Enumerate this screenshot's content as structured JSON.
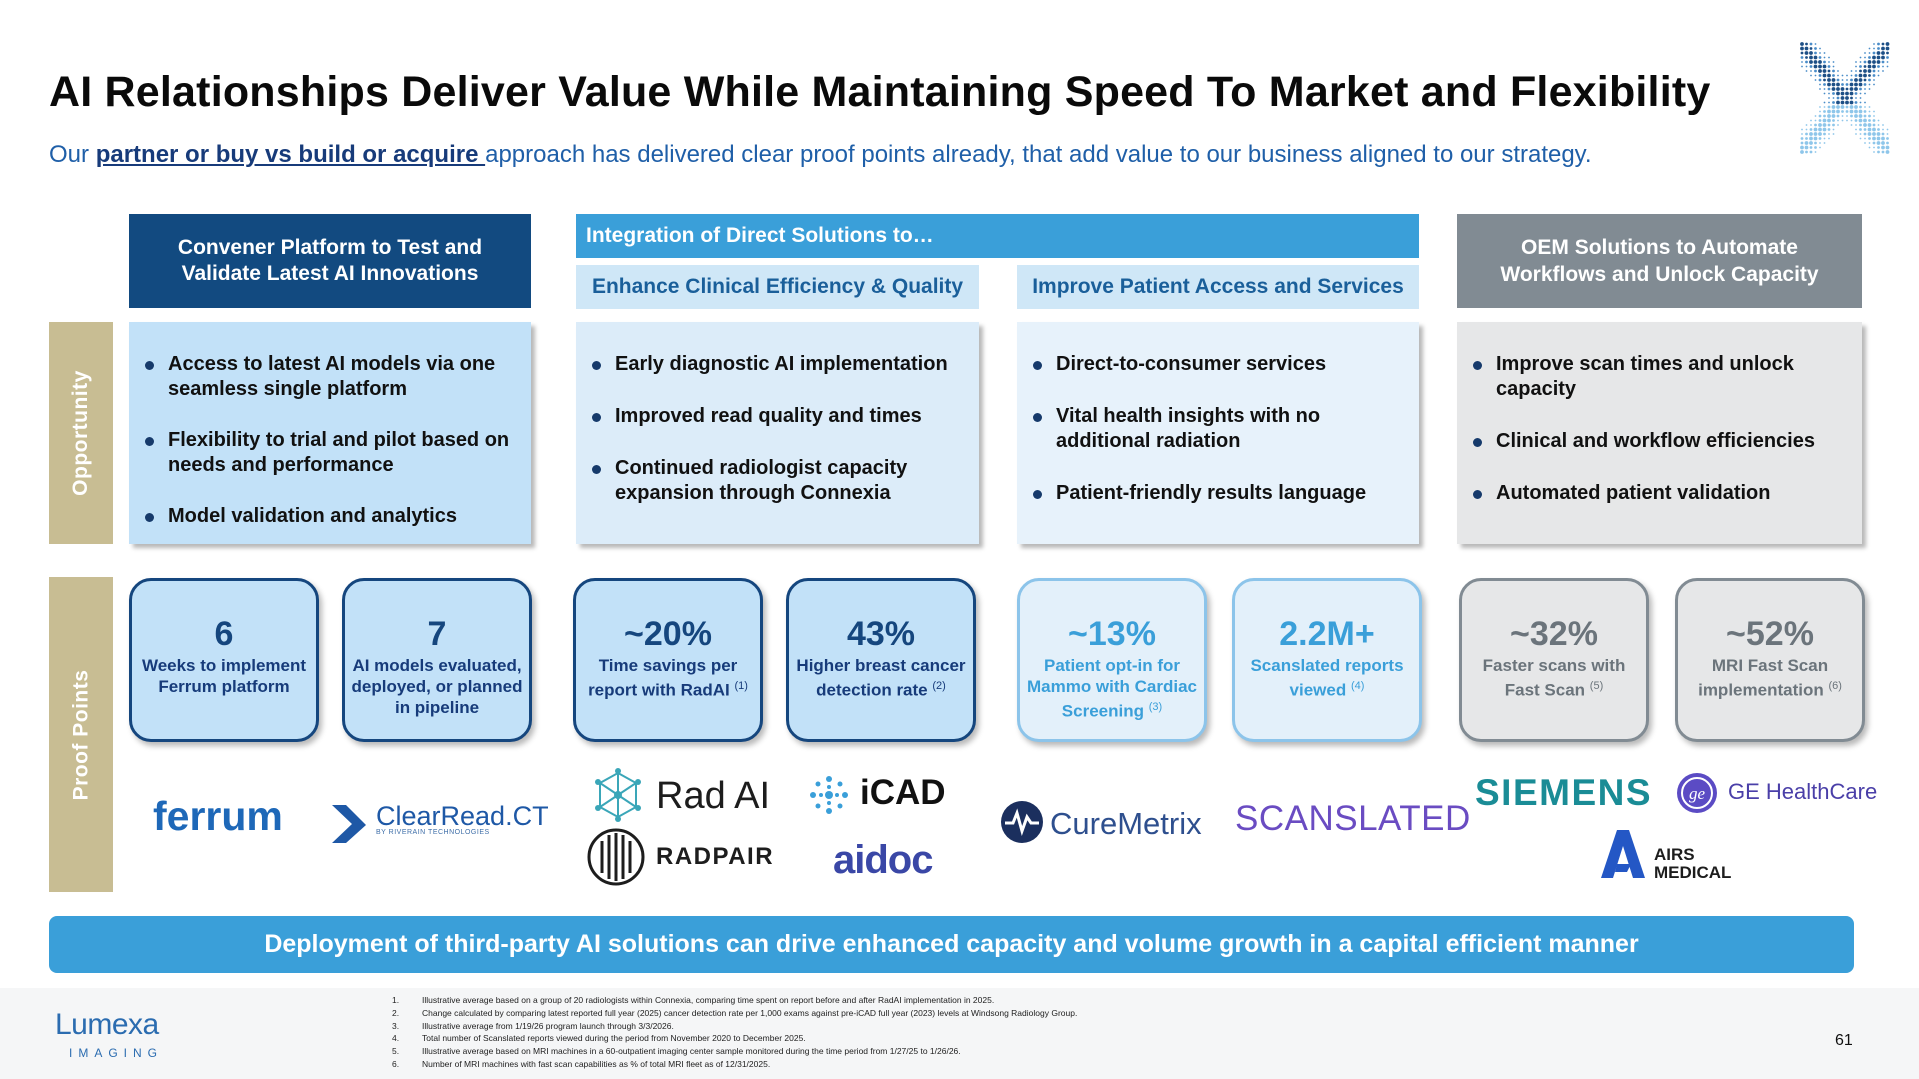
{
  "title": "AI Relationships Deliver Value While Maintaining Speed To Market and Flexibility",
  "subtitle": {
    "prefix": "Our ",
    "link": "partner or buy vs build or acquire ",
    "suffix": "approach has delivered clear proof points already, that add value to our business aligned to our strategy."
  },
  "headers": {
    "convener": "Convener Platform to Test and Validate Latest AI Innovations",
    "integration": "Integration of Direct Solutions to…",
    "enhance": "Enhance Clinical Efficiency & Quality",
    "improve": "Improve Patient Access and Services",
    "oem": "OEM Solutions to Automate Workflows and Unlock Capacity"
  },
  "side_labels": {
    "opportunity": "Opportunity",
    "proof": "Proof Points"
  },
  "opportunity": {
    "convener": [
      "Access to latest AI models via one seamless single platform",
      "Flexibility to trial and pilot based on needs and performance",
      "Model validation and analytics"
    ],
    "enhance": [
      "Early diagnostic AI implementation",
      "Improved read quality and times",
      "Continued radiologist capacity expansion through Connexia"
    ],
    "improve": [
      "Direct-to-consumer services",
      "Vital health insights with no additional radiation",
      "Patient-friendly results language"
    ],
    "oem": [
      "Improve scan times and unlock capacity",
      "Clinical and workflow efficiencies",
      "Automated patient validation"
    ]
  },
  "proof": [
    {
      "value": "6",
      "label": "Weeks to implement Ferrum platform",
      "note": ""
    },
    {
      "value": "7",
      "label": "AI models evaluated, deployed, or planned in pipeline",
      "note": ""
    },
    {
      "value": "~20%",
      "label": "Time savings per report with RadAI",
      "note": "(1)"
    },
    {
      "value": "43%",
      "label": "Higher breast cancer detection rate",
      "note": "(2)"
    },
    {
      "value": "~13%",
      "label": "Patient opt-in for Mammo with Cardiac Screening",
      "note": "(3)"
    },
    {
      "value": "2.2M+",
      "label": "Scanslated reports viewed",
      "note": "(4)"
    },
    {
      "value": "~32%",
      "label": "Faster scans with Fast Scan",
      "note": "(5)"
    },
    {
      "value": "~52%",
      "label": "MRI Fast Scan implementation",
      "note": "(6)"
    }
  ],
  "logos": {
    "ferrum": "ferrum",
    "clearread": "ClearRead",
    "clearread_ct": "CT",
    "clearread_sub": "BY RIVERAIN TECHNOLOGIES",
    "radai": "Rad AI",
    "icad": "iCAD",
    "radpair": "RADPAIR",
    "aidoc": "aidoc",
    "curemetrix": "CureMetrix",
    "scanslated": "SCANSLATED",
    "siemens": "SIEMENS",
    "ge": "GE HealthCare",
    "airs_1": "AIRS",
    "airs_2": "MEDICAL"
  },
  "banner": "Deployment of third-party AI solutions can drive enhanced capacity and volume growth in a capital efficient manner",
  "footer": {
    "brand": "Lumexa",
    "brand_sub": "IMAGING",
    "page_number": "61",
    "notes": [
      "Illustrative average based on a group of 20 radiologists within Connexia, comparing time spent on report before and after RadAI implementation in 2025.",
      "Change calculated by comparing latest reported full year (2025) cancer detection rate per 1,000 exams against pre-iCAD full year (2023) levels at Windsong Radiology Group.",
      "Illustrative average from 1/19/26 program launch through 3/3/2026.",
      "Total number of Scanslated reports viewed during the period from November 2020 to December 2025.",
      "Illustrative average based on MRI machines in a 60-outpatient imaging center sample monitored during the time period from 1/27/25 to 1/26/26.",
      "Number of MRI machines with fast scan capabilities as % of total MRI fleet as of 12/31/2025."
    ]
  },
  "colors": {
    "navy": "#124a80",
    "accent_blue": "#3a9fd9",
    "oem_gray": "#818b93",
    "side_tan": "#c8bd93"
  }
}
